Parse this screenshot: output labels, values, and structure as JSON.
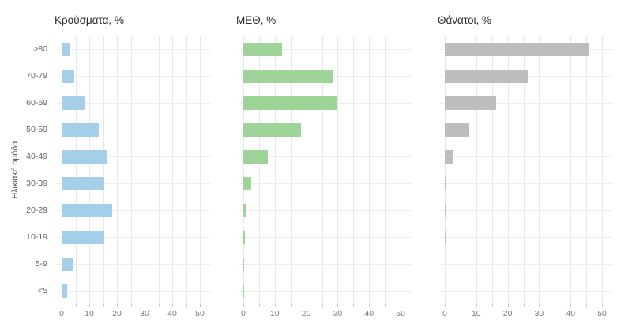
{
  "figure": {
    "background": "#ffffff"
  },
  "chart_data": {
    "type": "bar",
    "orientation": "horizontal",
    "y_axis_title": "Ηλικιακή ομάδα",
    "categories": [
      ">80",
      "70-79",
      "60-69",
      "50-59",
      "40-49",
      "30-39",
      "20-29",
      "10-19",
      "5-9",
      "<5"
    ],
    "x_ticks": [
      0,
      10,
      20,
      30,
      40,
      50
    ],
    "grid_step": 5,
    "grid_max": 50,
    "xlim": [
      0,
      52
    ],
    "grid": true,
    "legend": false,
    "panels": [
      {
        "title": "Κρούσματα, %",
        "color": "#a5cfe8",
        "values": [
          3.2,
          4.7,
          8.3,
          13.4,
          16.6,
          15.5,
          18.3,
          15.5,
          4.2,
          1.9
        ]
      },
      {
        "title": "ΜΕΘ, %",
        "color": "#9fd499",
        "values": [
          12.3,
          28.3,
          29.8,
          18.3,
          7.9,
          2.4,
          1.0,
          0.4,
          0.3,
          0.3
        ]
      },
      {
        "title": "Θάνατοι, %",
        "color": "#bdbdbd",
        "values": [
          45.8,
          26.3,
          16.4,
          7.7,
          2.8,
          0.6,
          0.3,
          0.2,
          0,
          0
        ]
      }
    ],
    "colors": {
      "grid": "#e8e8e8",
      "row_grid": "#ededed",
      "tick": "#c9c9c9",
      "axis_text": "#7a7a7a",
      "category_text": "#636363",
      "title_text": "#2d2d2d"
    }
  }
}
